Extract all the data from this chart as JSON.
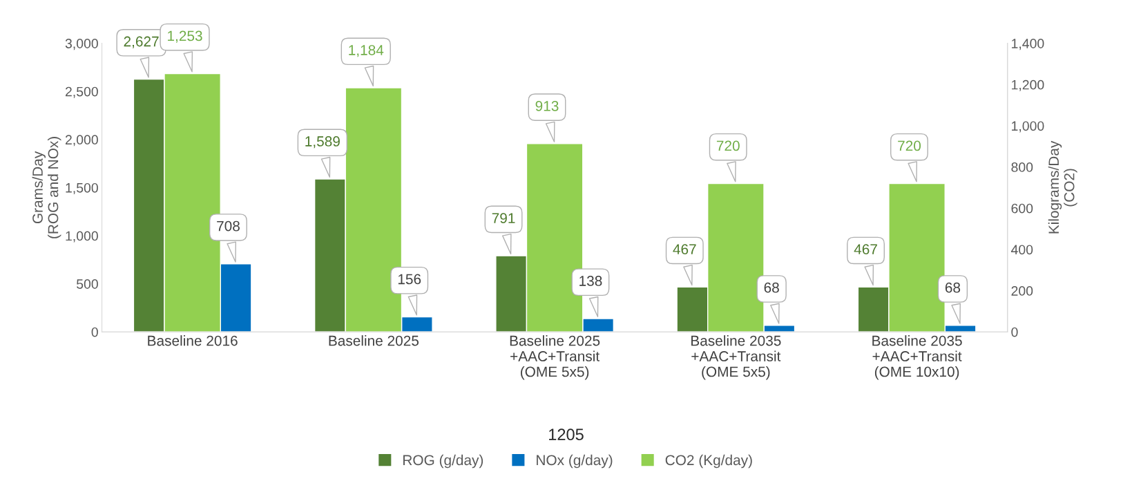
{
  "chart_data": {
    "type": "bar",
    "categories": [
      "Baseline 2016",
      "Baseline 2025",
      "Baseline 2025\n+AAC+Transit\n(OME 5x5)",
      "Baseline 2035\n+AAC+Transit\n(OME 5x5)",
      "Baseline 2035\n+AAC+Transit\n(OME 10x10)"
    ],
    "series": [
      {
        "name": "ROG (g/day)",
        "color": "#548235",
        "values": [
          2627,
          1589,
          791,
          467,
          467
        ],
        "value_labels": [
          "2,627",
          "1,589",
          "791",
          "467",
          "467"
        ]
      },
      {
        "name": "NOx (g/day)",
        "color": "#0070c0",
        "values": [
          708,
          156,
          138,
          68,
          68
        ],
        "value_labels": [
          "708",
          "156",
          "138",
          "68",
          "68"
        ]
      },
      {
        "name": "CO2 (Kg/day)",
        "color": "#92d050",
        "axis": "y2",
        "values": [
          1253,
          1184,
          913,
          720,
          720
        ],
        "value_labels": [
          "1,253",
          "1,184",
          "913",
          "720",
          "720"
        ]
      }
    ],
    "ylabel": "Grams/Day\n(ROG and NOx)",
    "y2label": "Kilograms/Day\n(CO2)",
    "ylim": [
      0,
      3000
    ],
    "yticks": [
      0,
      {
        "value": 500,
        "label": "500"
      },
      {
        "value": 1000,
        "label": "1,000"
      },
      {
        "value": 1500,
        "label": "1,500"
      },
      {
        "value": 2000,
        "label": "2,000"
      },
      {
        "value": 2500,
        "label": "2,500"
      },
      {
        "value": 3000,
        "label": "3,000"
      }
    ],
    "y2lim": [
      0,
      1400
    ],
    "y2ticks": [
      0,
      200,
      400,
      600,
      800,
      {
        "value": 1000,
        "label": "1,000"
      },
      {
        "value": 1200,
        "label": "1,200"
      },
      {
        "value": 1400,
        "label": "1,400"
      }
    ],
    "legend": "bottom",
    "grid": false,
    "annotations": [
      "1205"
    ]
  }
}
